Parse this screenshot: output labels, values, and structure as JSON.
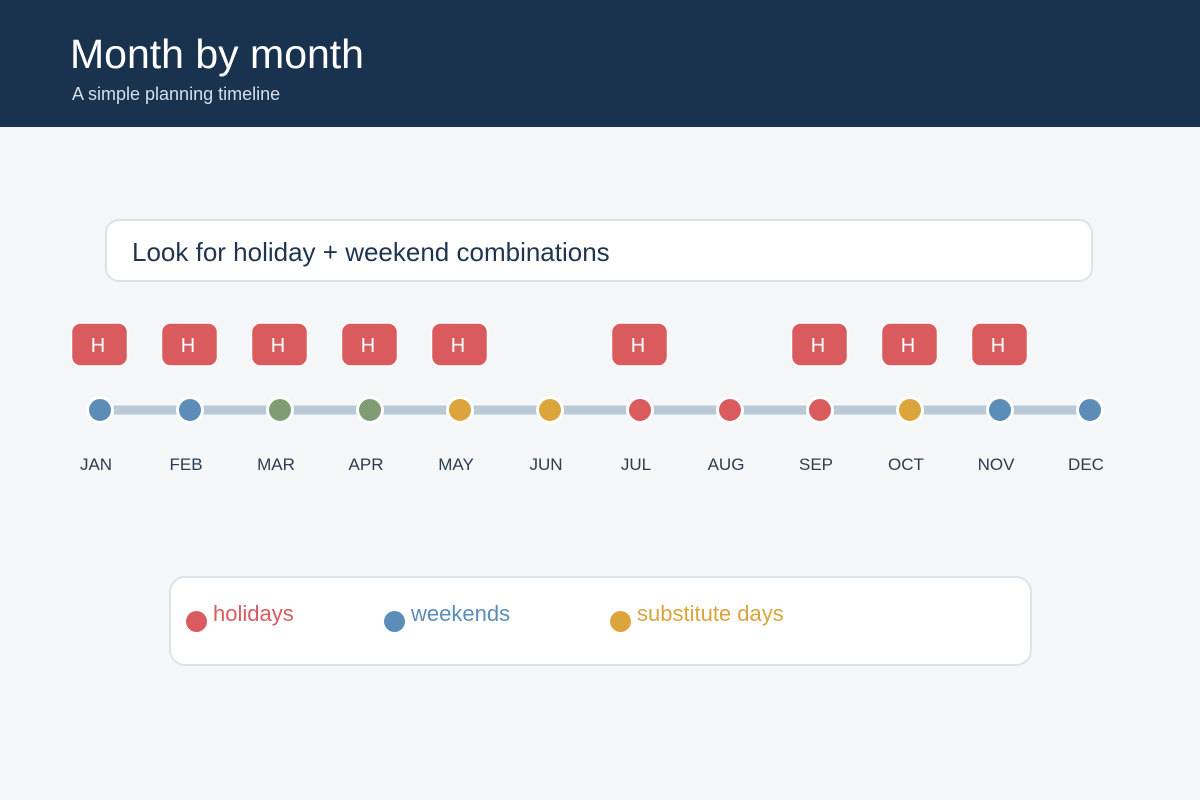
{
  "header": {
    "title": "Month by month",
    "subtitle": "A simple planning timeline"
  },
  "callout": {
    "text": "Look for holiday + weekend combinations"
  },
  "colors": {
    "header_bg": "#19324e",
    "holiday": "#d95b5e",
    "weekend": "#5b8db8",
    "substitute": "#dba43c",
    "other": "#7f9c74",
    "track": "#b9c9d6"
  },
  "timeline": {
    "badge_label": "H",
    "months": [
      {
        "label": "JAN",
        "type": "weekend",
        "has_holiday": true
      },
      {
        "label": "FEB",
        "type": "weekend",
        "has_holiday": true
      },
      {
        "label": "MAR",
        "type": "other",
        "has_holiday": true
      },
      {
        "label": "APR",
        "type": "other",
        "has_holiday": true
      },
      {
        "label": "MAY",
        "type": "substitute",
        "has_holiday": true
      },
      {
        "label": "JUN",
        "type": "substitute",
        "has_holiday": false
      },
      {
        "label": "JUL",
        "type": "holiday",
        "has_holiday": true
      },
      {
        "label": "AUG",
        "type": "holiday",
        "has_holiday": false
      },
      {
        "label": "SEP",
        "type": "holiday",
        "has_holiday": true
      },
      {
        "label": "OCT",
        "type": "substitute",
        "has_holiday": true
      },
      {
        "label": "NOV",
        "type": "weekend",
        "has_holiday": true
      },
      {
        "label": "DEC",
        "type": "weekend",
        "has_holiday": false
      }
    ]
  },
  "legend": {
    "items": [
      {
        "key": "holiday",
        "label": "holidays"
      },
      {
        "key": "weekend",
        "label": "weekends"
      },
      {
        "key": "substitute",
        "label": "substitute days"
      }
    ]
  }
}
